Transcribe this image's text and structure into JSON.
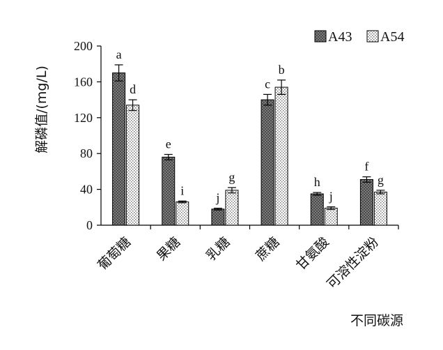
{
  "chart_data": {
    "type": "bar",
    "title": "",
    "xlabel": "不同碳源",
    "ylabel": "解磷值/(mg/L)",
    "ylim": [
      0,
      200
    ],
    "yticks": [
      0,
      40,
      80,
      120,
      160,
      200
    ],
    "grid": false,
    "legend_position": "top-right",
    "categories": [
      "葡萄糖",
      "果糖",
      "乳糖",
      "蔗糖",
      "甘氨酸",
      "可溶性淀粉"
    ],
    "series": [
      {
        "name": "A43",
        "values": [
          170,
          76,
          18,
          140,
          35,
          51
        ],
        "errors": [
          9,
          3,
          1,
          6,
          1.5,
          3
        ],
        "labels": [
          "a",
          "e",
          "j",
          "c",
          "h",
          "f"
        ],
        "fill": "#8a8a8a"
      },
      {
        "name": "A54",
        "values": [
          134,
          26,
          39,
          154,
          19,
          37
        ],
        "errors": [
          6,
          1,
          3,
          8,
          1.5,
          2
        ],
        "labels": [
          "d",
          "i",
          "g",
          "b",
          "j",
          "g"
        ],
        "fill": "#f2f2f2"
      }
    ]
  }
}
